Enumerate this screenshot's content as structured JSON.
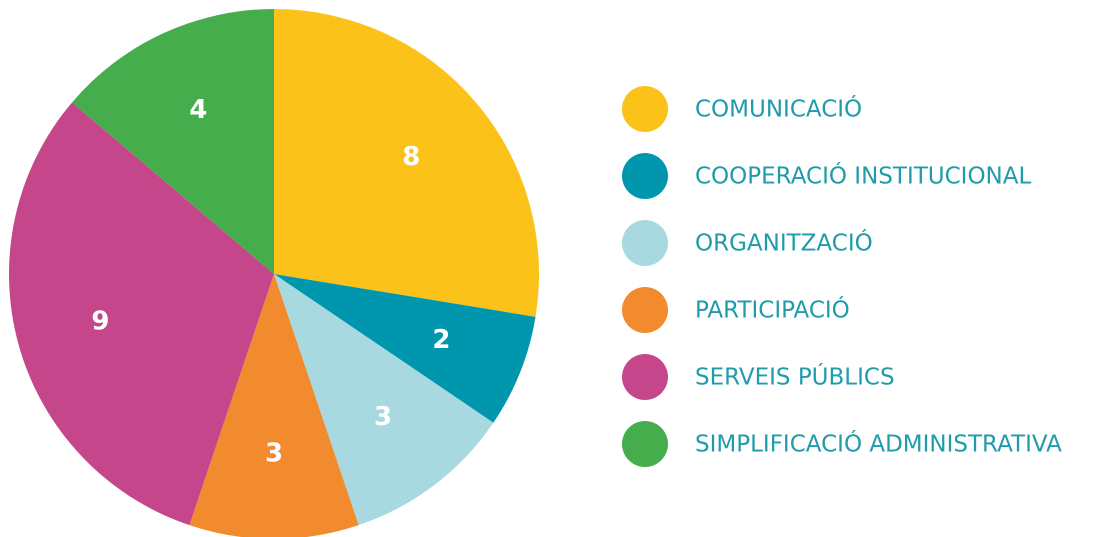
{
  "chart_data": {
    "type": "pie",
    "categories": [
      "COMUNICACIÓ",
      "COOPERACIÓ INSTITUCIONAL",
      "ORGANITZACIÓ",
      "PARTICIPACIÓ",
      "SERVEIS PÚBLICS",
      "SIMPLIFICACIÓ ADMINISTRATIVA"
    ],
    "values": [
      8,
      2,
      3,
      3,
      9,
      4
    ],
    "colors": [
      "#fbc31a",
      "#0097ae",
      "#a8d8e0",
      "#f28a2e",
      "#c6468c",
      "#45ad4b"
    ],
    "legend": "right"
  }
}
